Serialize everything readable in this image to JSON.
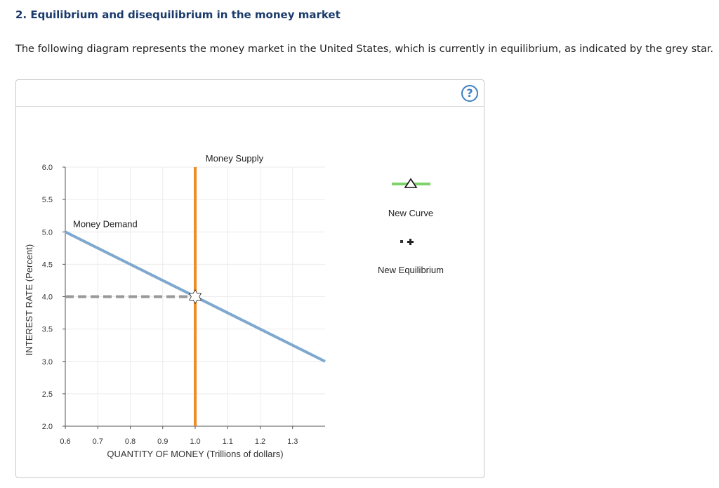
{
  "question": {
    "title": "2. Equilibrium and disequilibrium in the money market",
    "text": "The following diagram represents the money market in the United States, which is currently in equilibrium, as indicated by the grey star."
  },
  "help_label": "?",
  "palette": {
    "new_curve_label": "New Curve",
    "new_equilibrium_label": "New Equilibrium",
    "new_curve_color": "#7ed36a"
  },
  "chart_data": {
    "type": "line",
    "xlabel": "QUANTITY OF MONEY (Trillions of dollars)",
    "ylabel": "INTEREST RATE (Percent)",
    "xlim": [
      0.6,
      1.4
    ],
    "ylim": [
      2.0,
      6.0
    ],
    "x_ticks": [
      "0.6",
      "0.7",
      "0.8",
      "0.9",
      "1.0",
      "1.1",
      "1.2",
      "1.3"
    ],
    "y_ticks": [
      "2.0",
      "2.5",
      "3.0",
      "3.5",
      "4.0",
      "4.5",
      "5.0",
      "5.5",
      "6.0"
    ],
    "grid": true,
    "series": [
      {
        "name": "Money Demand",
        "color": "#7fa8cf",
        "points": [
          [
            0.6,
            5.0
          ],
          [
            1.4,
            3.0
          ]
        ]
      },
      {
        "name": "Money Supply",
        "color": "#f08c25",
        "points": [
          [
            1.0,
            2.0
          ],
          [
            1.0,
            6.0
          ]
        ]
      }
    ],
    "equilibrium": {
      "x": 1.0,
      "y": 4.0,
      "color": "#888888"
    }
  }
}
